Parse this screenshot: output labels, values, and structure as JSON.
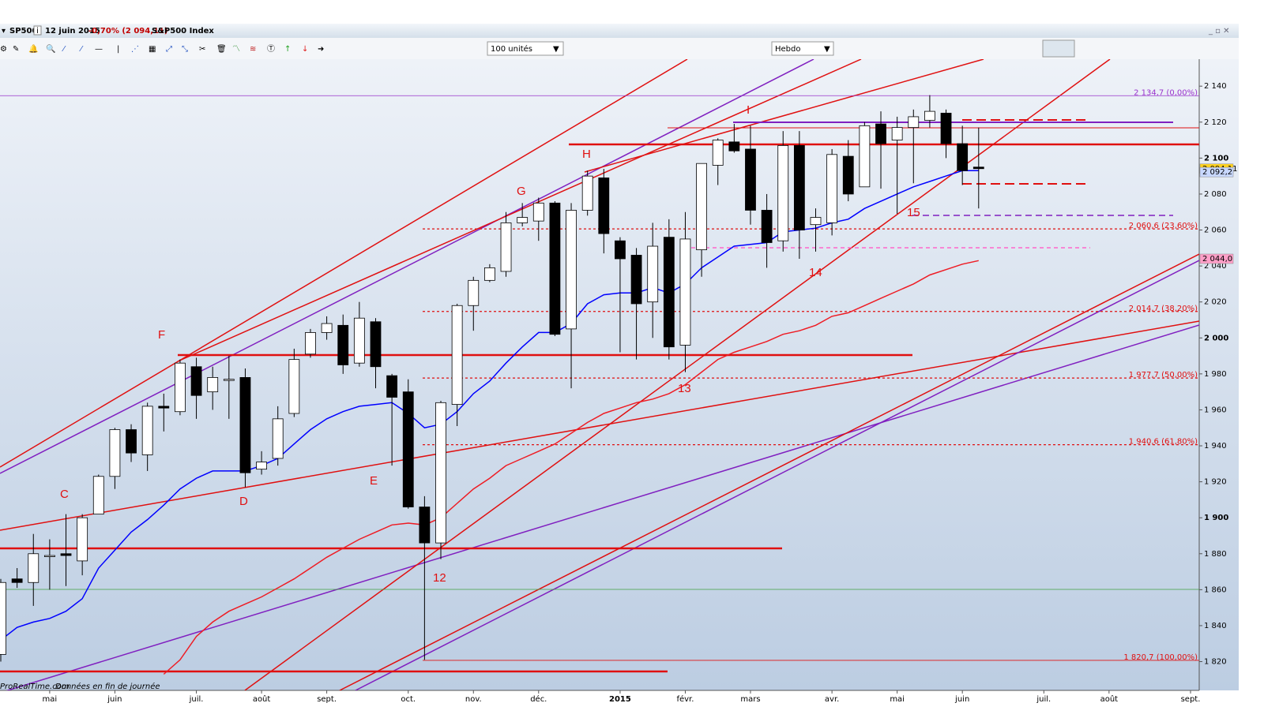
{
  "header": {
    "symbol": "SP500",
    "info": "i",
    "date": "12 juin 2015",
    "change": "-0,70% (2 094,11)",
    "name": "S&P500 Index"
  },
  "toolbar": {
    "units": "100 unités",
    "period": "Hebdo"
  },
  "footer": {
    "source": "ProRealTime.com",
    "note": "Données en fin de journée"
  },
  "chart_data": {
    "type": "candlestick",
    "categories": [
      null,
      null,
      null,
      "mai",
      null,
      null,
      null,
      "juin",
      null,
      null,
      null,
      null,
      "juil.",
      null,
      null,
      null,
      "août",
      null,
      null,
      null,
      "sept.",
      null,
      null,
      null,
      null,
      "oct.",
      null,
      null,
      null,
      "nov.",
      null,
      null,
      null,
      "déc.",
      null,
      null,
      null,
      null,
      "2015",
      null,
      null,
      null,
      "févr.",
      null,
      null,
      null,
      "mars",
      null,
      null,
      null,
      null,
      "avr.",
      null,
      null,
      null,
      "mai",
      null,
      null,
      null,
      "juin",
      null,
      null,
      null,
      null,
      "juil.",
      null,
      null,
      null,
      "août",
      null,
      null,
      null,
      null,
      "sept."
    ],
    "open": [
      1824,
      1866,
      1864,
      1879,
      1880,
      1876,
      1902,
      1923,
      1949,
      1935,
      1962,
      1959,
      1984,
      1970,
      1977,
      1978,
      1927,
      1933,
      1958,
      1991,
      2003,
      2007,
      1986,
      2009,
      1979,
      1970,
      1906,
      1886,
      1963,
      2018,
      2032,
      2037,
      2064,
      2065,
      2075,
      2005,
      2071,
      2089,
      2054,
      2046,
      2020,
      2056,
      1996,
      2049,
      2096,
      2109,
      2105,
      2071,
      2054,
      2107,
      2063,
      2064,
      2101,
      2084,
      2119,
      2110,
      2117,
      2121,
      2125,
      2108,
      2095,
      null,
      null,
      null,
      null,
      null,
      null,
      null,
      null,
      null,
      null,
      null,
      null,
      null
    ],
    "high": [
      1866,
      1872,
      1891,
      1888,
      1902,
      1902,
      1924,
      1950,
      1952,
      1964,
      1969,
      1988,
      1989,
      1984,
      1990,
      1983,
      1937,
      1962,
      1994,
      2005,
      2012,
      2013,
      2020,
      2011,
      1980,
      1977,
      1912,
      1965,
      2019,
      2034,
      2041,
      2070,
      2075,
      2078,
      2076,
      2075,
      2093,
      2094,
      2056,
      2050,
      2064,
      2066,
      2070,
      2097,
      2111,
      2119,
      2118,
      2080,
      2115,
      2115,
      2072,
      2105,
      2110,
      2120,
      2126,
      2123,
      2127,
      2135,
      2127,
      2118,
      2117,
      null,
      null,
      null,
      null,
      null,
      null,
      null,
      null,
      null,
      null,
      null,
      null,
      null
    ],
    "low": [
      1820,
      1861,
      1851,
      1860,
      1862,
      1868,
      1902,
      1916,
      1931,
      1926,
      1948,
      1957,
      1955,
      1960,
      1955,
      1917,
      1924,
      1929,
      1956,
      1989,
      1999,
      1980,
      1984,
      1972,
      1929,
      1905,
      1821,
      1877,
      1951,
      2004,
      2031,
      2034,
      2062,
      2054,
      2001,
      1972,
      2068,
      2047,
      1992,
      1988,
      2000,
      1988,
      1981,
      2034,
      2085,
      2103,
      2063,
      2039,
      2048,
      2044,
      2048,
      2057,
      2076,
      2084,
      2083,
      2069,
      2086,
      2117,
      2100,
      2085,
      2072,
      null,
      null,
      null,
      null,
      null,
      null,
      null,
      null,
      null,
      null,
      null,
      null,
      null
    ],
    "close": [
      1864,
      1864,
      1880,
      1879,
      1879,
      1900,
      1923,
      1949,
      1936,
      1962,
      1961,
      1986,
      1968,
      1978,
      1977,
      1925,
      1931,
      1955,
      1988,
      2003,
      2008,
      1985,
      2011,
      1984,
      1967,
      1906,
      1886,
      1964,
      2018,
      2032,
      2039,
      2064,
      2067,
      2075,
      2002,
      2071,
      2090,
      2058,
      2044,
      2019,
      2051,
      1995,
      2055,
      2097,
      2110,
      2104,
      2071,
      2053,
      2107,
      2060,
      2067,
      2102,
      2080,
      2118,
      2108,
      2117,
      2123,
      2126,
      2108,
      2093,
      2094.11,
      null,
      null,
      null,
      null,
      null,
      null,
      null,
      null,
      null,
      null,
      null,
      null,
      null
    ],
    "up_color": "#ffffff",
    "down_color": "#000000",
    "overlays": [
      {
        "color": "#0000ff",
        "values": [
          1832,
          1839,
          1842,
          1844,
          1848,
          1855,
          1872,
          1882,
          1892,
          1899,
          1907,
          1916,
          1922,
          1926,
          1926,
          1926,
          1929,
          1933,
          1941,
          1949,
          1955,
          1959,
          1962,
          1963,
          1964,
          1958,
          1950,
          1952,
          1959,
          1969,
          1976,
          1986,
          1995,
          2003,
          2003,
          2008,
          2019,
          2024,
          2025,
          2025,
          2028,
          2025,
          2030,
          2039,
          2045,
          2051,
          2052,
          2053,
          2059,
          2060,
          2061,
          2064,
          2066,
          2072,
          2076,
          2080,
          2084,
          2087,
          2090,
          2093,
          2093,
          null,
          null,
          null,
          null,
          null,
          null,
          null,
          null,
          null,
          null,
          null,
          null,
          null
        ]
      },
      {
        "color": "#ee1c24",
        "values": [
          null,
          null,
          null,
          null,
          null,
          null,
          null,
          null,
          null,
          null,
          1813,
          1821,
          1834,
          1842,
          1848,
          1852,
          1856,
          1861,
          1866,
          1872,
          1878,
          1883,
          1888,
          1892,
          1896,
          1897,
          1896,
          1900,
          1908,
          1916,
          1922,
          1929,
          1933,
          1937,
          1941,
          1947,
          1953,
          1958,
          1961,
          1964,
          1966,
          1969,
          1974,
          1981,
          1988,
          1992,
          1995,
          1998,
          2002,
          2004,
          2007,
          2012,
          2014,
          2018,
          2022,
          2026,
          2030,
          2035,
          2038,
          2041,
          2043,
          null,
          null,
          null,
          null,
          null,
          null,
          null,
          null,
          null,
          null,
          null,
          null,
          null
        ]
      }
    ],
    "ylim": [
      1804,
      2155
    ],
    "yticks": [
      {
        "value": 1820,
        "label": "1 820"
      },
      {
        "value": 1840,
        "label": "1 840"
      },
      {
        "value": 1860,
        "label": "1 860"
      },
      {
        "value": 1880,
        "label": "1 880"
      },
      {
        "value": 1900,
        "label": "1 900"
      },
      {
        "value": 1920,
        "label": "1 920"
      },
      {
        "value": 1940,
        "label": "1 940"
      },
      {
        "value": 1960,
        "label": "1 960"
      },
      {
        "value": 1980,
        "label": "1 980"
      },
      {
        "value": 2000,
        "label": "2 000"
      },
      {
        "value": 2020,
        "label": "2 020"
      },
      {
        "value": 2040,
        "label": "2 040"
      },
      {
        "value": 2060,
        "label": "2 060"
      },
      {
        "value": 2080,
        "label": "2 080"
      },
      {
        "value": 2100,
        "label": "2 100"
      },
      {
        "value": 2120,
        "label": "2 120"
      },
      {
        "value": 2140,
        "label": "2 140"
      }
    ],
    "levels": [
      {
        "value": 2134.7,
        "label": "2 134,7 (0,00%)",
        "color": "#9933cc"
      },
      {
        "value": 2060.6,
        "label": "2 060,6 (23,60%)",
        "color": "#e01010"
      },
      {
        "value": 2014.7,
        "label": "2 014,7 (38,20%)",
        "color": "#e01010"
      },
      {
        "value": 1977.7,
        "label": "1 977,7 (50,00%)",
        "color": "#e01010"
      },
      {
        "value": 1940.6,
        "label": "1 940,6 (61,80%)",
        "color": "#e01010"
      },
      {
        "value": 1820.7,
        "label": "1 820,7 (100,00%)",
        "color": "#e01010"
      }
    ],
    "price_tags": [
      {
        "value": 2094.11,
        "label": "2 094,11",
        "color": "#ffd21f"
      },
      {
        "value": 2092.2,
        "label": "2 092,2",
        "color": "#c8d8ff"
      },
      {
        "value": 2044.0,
        "label": "2 044,0",
        "color": "#ff9fc8"
      }
    ],
    "annotations": [
      "C",
      "D",
      "E",
      "F",
      "G",
      "H",
      "I",
      "12",
      "13",
      "14",
      "15"
    ]
  }
}
